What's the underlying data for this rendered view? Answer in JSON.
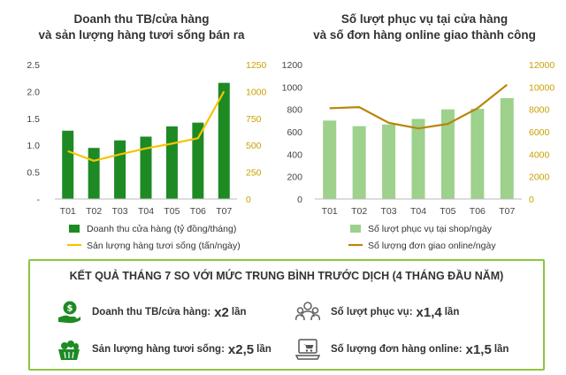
{
  "chart_data": [
    {
      "type": "bar+line",
      "title_lines": [
        "Doanh thu TB/cửa hàng",
        "và sản lượng hàng tươi sống bán ra"
      ],
      "categories": [
        "T01",
        "T02",
        "T03",
        "T04",
        "T05",
        "T06",
        "T07"
      ],
      "y_left": {
        "ticks": [
          "2.5",
          "2.0",
          "1.5",
          "1.0",
          "0.5",
          "-"
        ],
        "range": [
          0,
          2.5
        ]
      },
      "y_right": {
        "ticks": [
          "1250",
          "1000",
          "750",
          "500",
          "250",
          "0"
        ],
        "range": [
          0,
          1250
        ]
      },
      "series": [
        {
          "name": "Doanh thu cửa hàng (tỷ đồng/tháng)",
          "kind": "bar",
          "axis": "left",
          "values": [
            1.27,
            0.95,
            1.09,
            1.16,
            1.35,
            1.42,
            2.16
          ],
          "color": "#1e8a24"
        },
        {
          "name": "Sản lượng hàng tươi sống (tấn/ngày)",
          "kind": "line",
          "axis": "right",
          "values": [
            445,
            355,
            415,
            470,
            515,
            565,
            1000
          ],
          "color": "#f7c400"
        }
      ]
    },
    {
      "type": "bar+line",
      "title_lines": [
        "Số lượt phục vụ tại cửa hàng",
        "và số đơn hàng online giao thành công"
      ],
      "categories": [
        "T01",
        "T02",
        "T03",
        "T04",
        "T05",
        "T06",
        "T07"
      ],
      "y_left": {
        "ticks": [
          "1200",
          "1000",
          "800",
          "600",
          "400",
          "200",
          "0"
        ],
        "range": [
          0,
          1200
        ]
      },
      "y_right": {
        "ticks": [
          "12000",
          "10000",
          "8000",
          "6000",
          "4000",
          "2000",
          "0"
        ],
        "range": [
          0,
          12000
        ]
      },
      "series": [
        {
          "name": "Số lượt phục vụ tại shop/ngày",
          "kind": "bar",
          "axis": "left",
          "values": [
            700,
            650,
            665,
            715,
            800,
            805,
            900
          ],
          "color": "#9dd18c"
        },
        {
          "name": "Số lượng đơn giao online/ngày",
          "kind": "line",
          "axis": "right",
          "values": [
            8100,
            8200,
            6800,
            6300,
            6700,
            8100,
            10200
          ],
          "color": "#b8860b"
        }
      ]
    }
  ],
  "summary": {
    "title": "KẾT QUẢ THÁNG 7 SO VỚI MỨC TRUNG BÌNH TRƯỚC DỊCH (4 THÁNG ĐẦU NĂM)",
    "items": [
      {
        "icon": "money-hand-icon",
        "label": "Doanh thu TB/cửa hàng:",
        "mult": "x2",
        "unit": "lần"
      },
      {
        "icon": "people-icon",
        "label": "Số lượt phục vụ:",
        "mult": "x1,4",
        "unit": "lần"
      },
      {
        "icon": "produce-basket-icon",
        "label": "Sản lượng hàng tươi sống:",
        "mult": "x2,5",
        "unit": "lần"
      },
      {
        "icon": "online-order-icon",
        "label": "Số lượng đơn hàng online:",
        "mult": "x1,5",
        "unit": "lần"
      }
    ]
  },
  "colors": {
    "green_dark": "#1e8a24",
    "green_light": "#9dd18c",
    "yellow": "#f7c400",
    "gold": "#b8860b",
    "box_border": "#8cc63f",
    "icon_green": "#1e8a24"
  }
}
